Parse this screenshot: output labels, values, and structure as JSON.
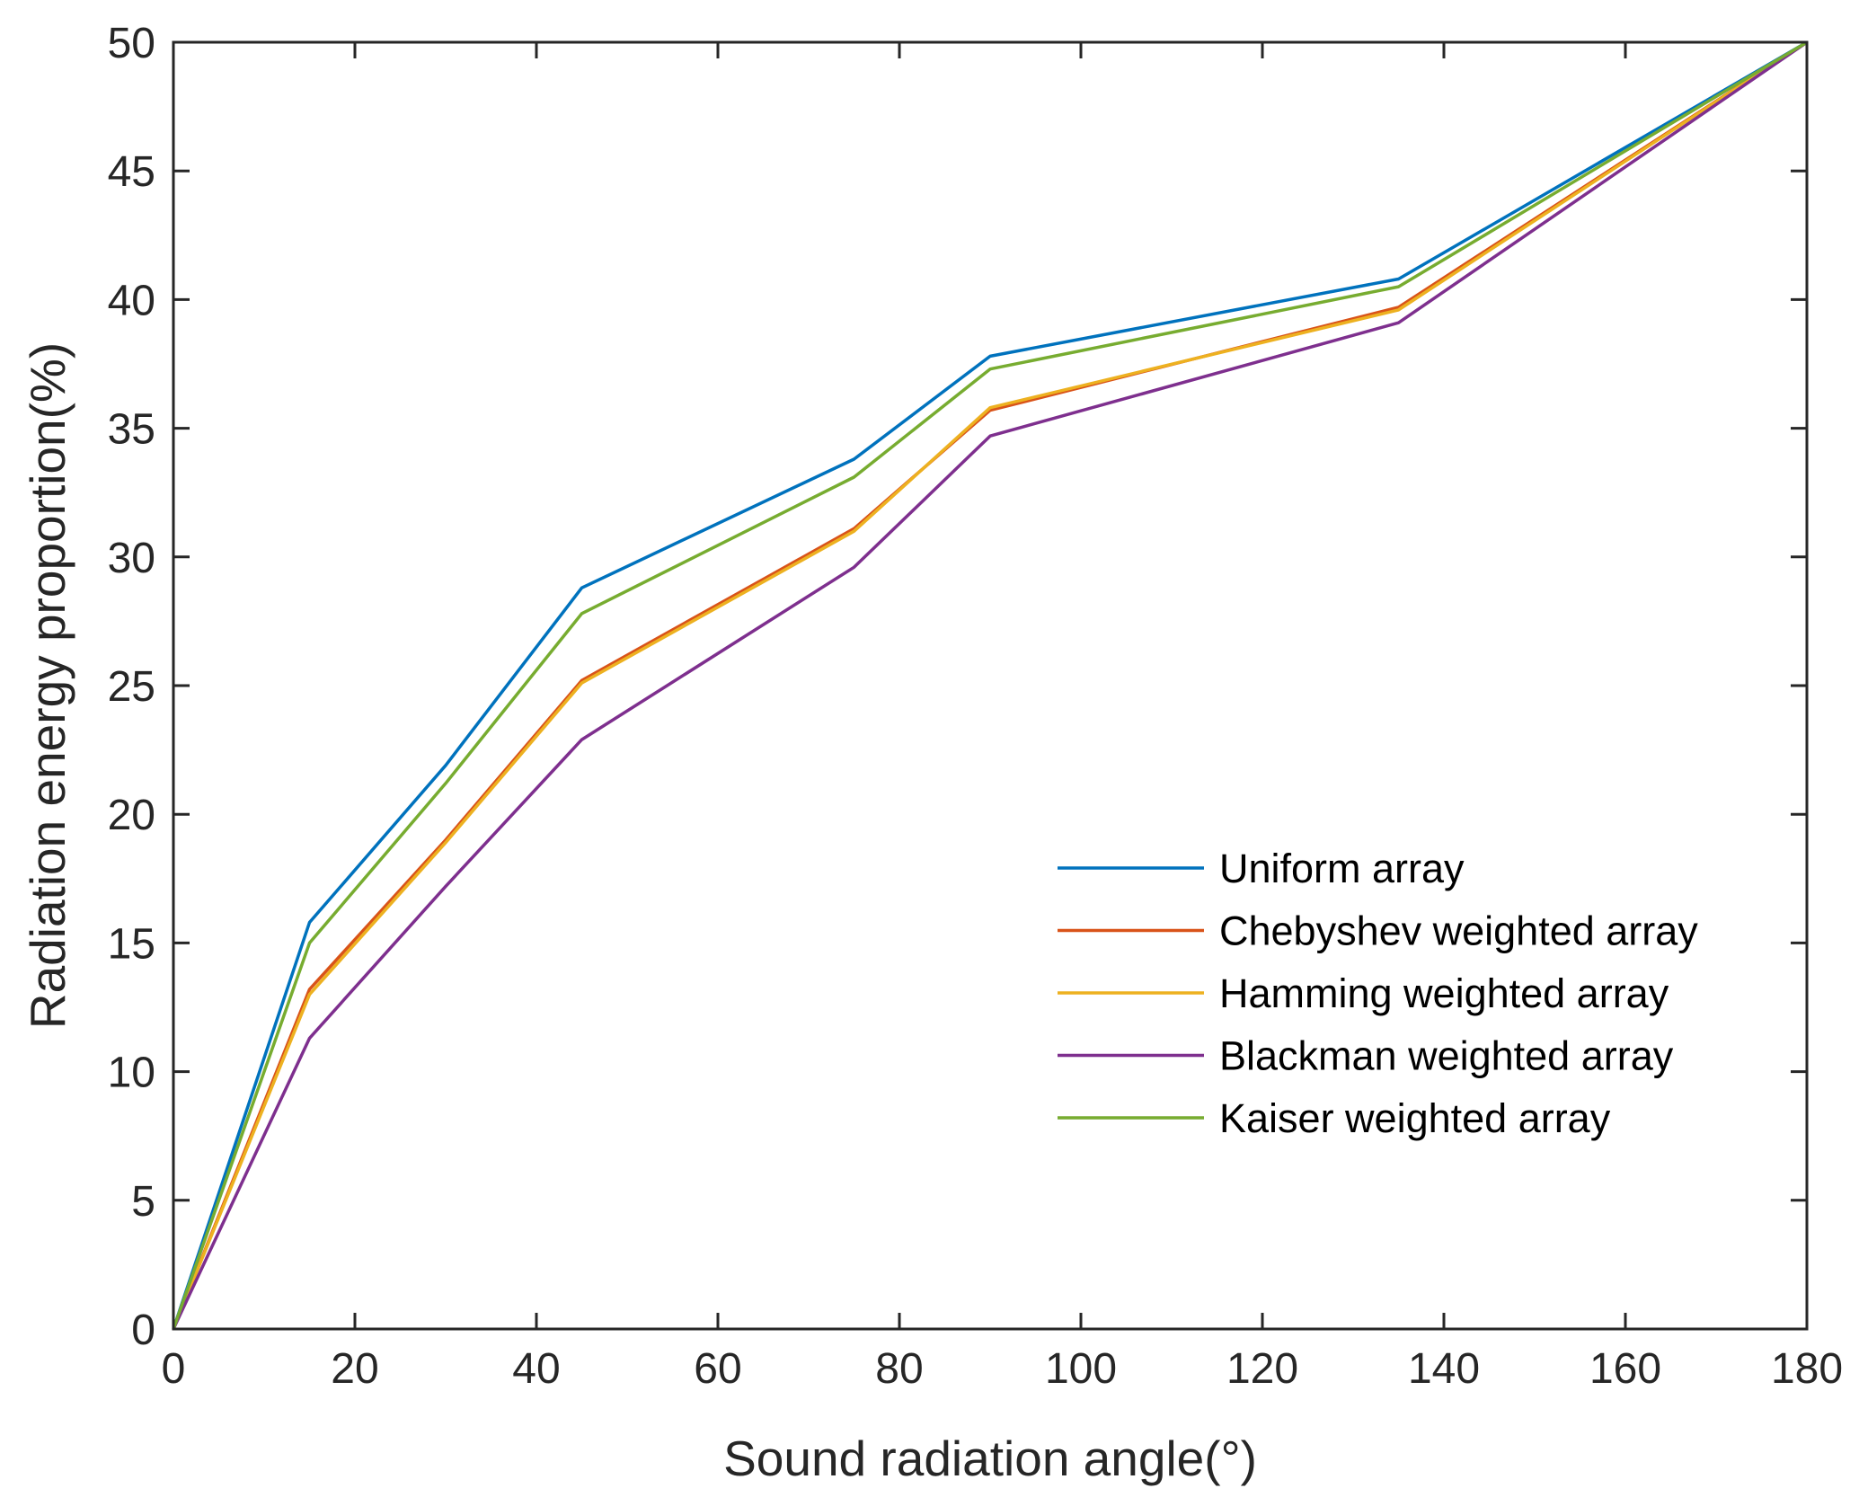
{
  "chart_data": {
    "type": "line",
    "title": "",
    "xlabel": "Sound radiation angle(°)",
    "ylabel": "Radiation energy proportion(%)",
    "xlim": [
      0,
      180
    ],
    "ylim": [
      0,
      50
    ],
    "xticks": [
      0,
      20,
      40,
      60,
      80,
      100,
      120,
      140,
      160,
      180
    ],
    "yticks": [
      0,
      5,
      10,
      15,
      20,
      25,
      30,
      35,
      40,
      45,
      50
    ],
    "grid": false,
    "legend_position": "lower-right",
    "x": [
      0,
      15,
      30,
      45,
      75,
      90,
      135,
      180
    ],
    "series": [
      {
        "name": "Uniform array",
        "color": "#0072BD",
        "values": [
          0,
          15.8,
          21.9,
          28.8,
          33.8,
          37.8,
          40.8,
          50
        ]
      },
      {
        "name": "Chebyshev weighted array",
        "color": "#D95319",
        "values": [
          0,
          13.2,
          19.0,
          25.2,
          31.1,
          35.7,
          39.7,
          50
        ]
      },
      {
        "name": "Hamming weighted array",
        "color": "#EDB120",
        "values": [
          0,
          13.0,
          18.9,
          25.1,
          31.0,
          35.8,
          39.6,
          50
        ]
      },
      {
        "name": "Blackman weighted array",
        "color": "#7E2F8E",
        "values": [
          0,
          11.3,
          17.2,
          22.9,
          29.6,
          34.7,
          39.1,
          50
        ]
      },
      {
        "name": "Kaiser weighted array",
        "color": "#77AC30",
        "values": [
          0,
          15.0,
          21.2,
          27.8,
          33.1,
          37.3,
          40.5,
          50
        ]
      }
    ]
  }
}
